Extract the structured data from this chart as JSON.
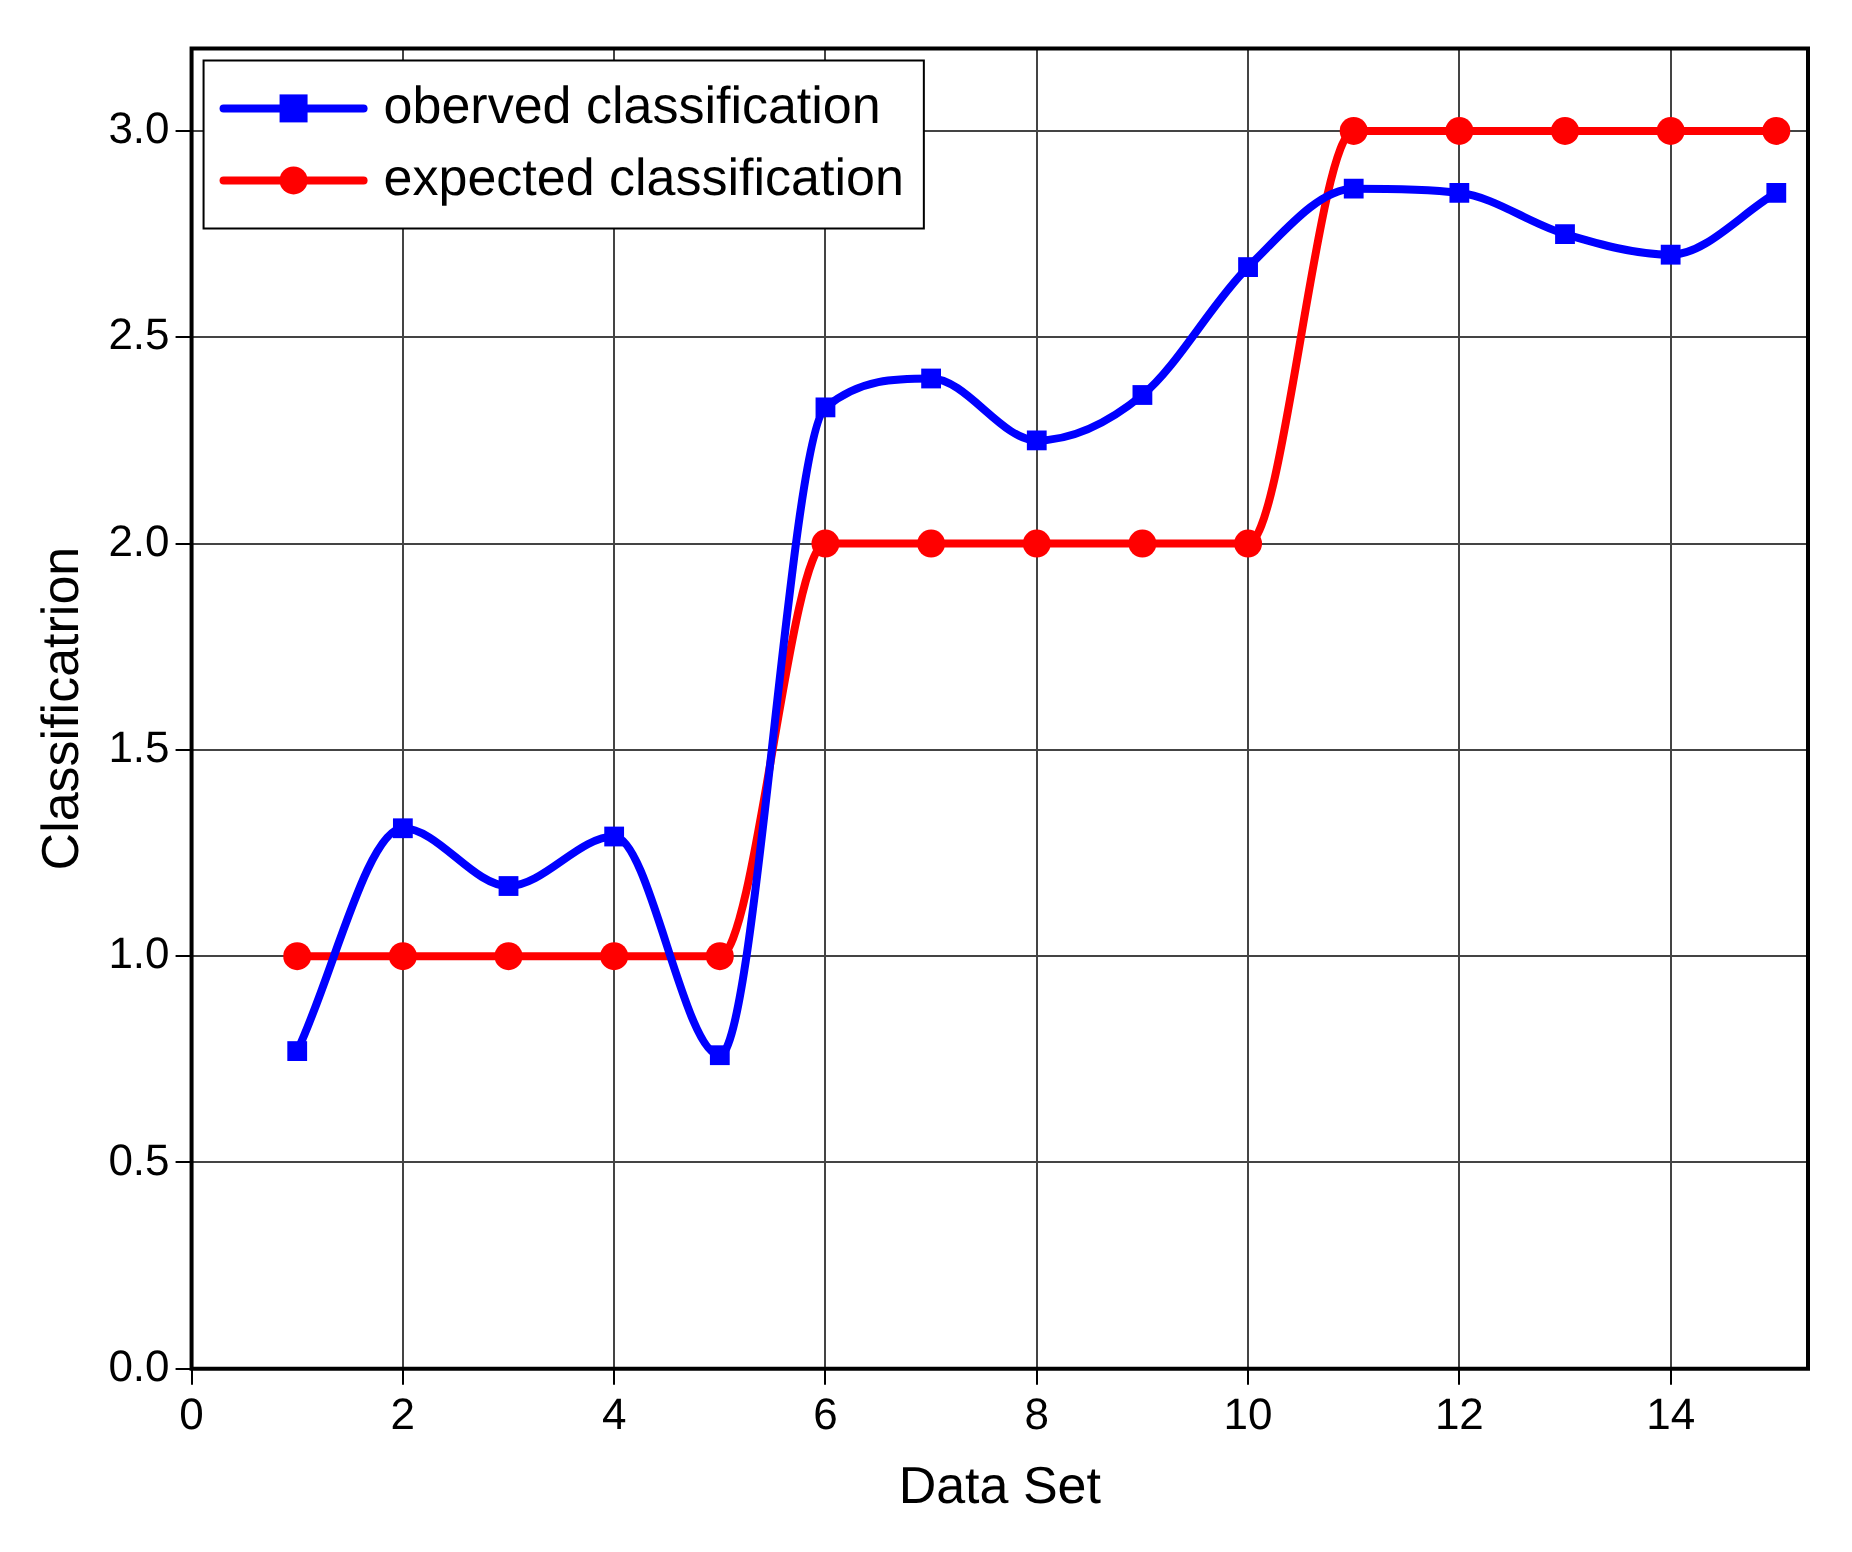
{
  "chart_data": {
    "type": "line",
    "xlabel": "Data Set",
    "ylabel": "Classificatrion",
    "x": [
      1,
      2,
      3,
      4,
      5,
      6,
      7,
      8,
      9,
      10,
      11,
      12,
      13,
      14,
      15
    ],
    "xlim": [
      0,
      15.3
    ],
    "xticks": [
      0,
      2,
      4,
      6,
      8,
      10,
      12,
      14
    ],
    "ylim": [
      0,
      3.2
    ],
    "yticks": [
      {
        "value": 0,
        "label": "0.0"
      },
      0.5,
      {
        "value": 1,
        "label": "1.0"
      },
      1.5,
      {
        "value": 2,
        "label": "2.0"
      },
      2.5,
      {
        "value": 3,
        "label": "3.0"
      }
    ],
    "grid": true,
    "legend": "top left",
    "line_style": "solid",
    "series": [
      {
        "name": "oberved classification",
        "color": "#0000ff",
        "marker": "square",
        "values": [
          0.77,
          1.31,
          1.17,
          1.29,
          0.76,
          2.33,
          2.4,
          2.25,
          2.36,
          2.67,
          2.86,
          2.85,
          2.75,
          2.7,
          2.85
        ]
      },
      {
        "name": "expected classification",
        "color": "#ff0000",
        "marker": "circle",
        "values": [
          1,
          1,
          1,
          1,
          1,
          2,
          2,
          2,
          2,
          2,
          3,
          3,
          3,
          3,
          3
        ]
      }
    ]
  }
}
